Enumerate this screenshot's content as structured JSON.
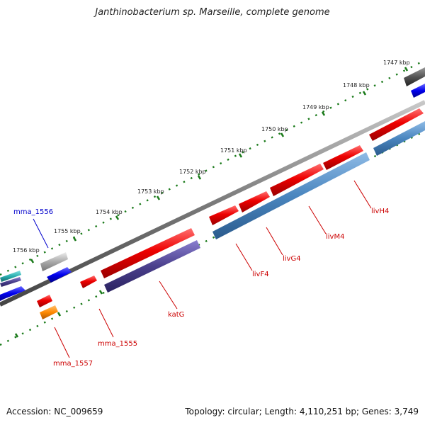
{
  "title": "Janthinobacterium sp. Marseille, complete genome",
  "footer": {
    "accession": "Accession: NC_009659",
    "summary": "Topology: circular; Length: 4,110,251 bp; Genes: 3,749"
  },
  "ticks": [
    "1747 kbp",
    "1748 kbp",
    "1749 kbp",
    "1750 kbp",
    "1751 kbp",
    "1752 kbp",
    "1753 kbp",
    "1754 kbp",
    "1755 kbp",
    "1756 kbp"
  ],
  "genes": [
    {
      "name": "livH4",
      "color": "#cc0000"
    },
    {
      "name": "livM4",
      "color": "#cc0000"
    },
    {
      "name": "livG4",
      "color": "#cc0000"
    },
    {
      "name": "livF4",
      "color": "#cc0000"
    },
    {
      "name": "katG",
      "color": "#cc0000"
    },
    {
      "name": "mma_1555",
      "color": "#cc0000"
    },
    {
      "name": "mma_1556",
      "color": "#0000cc"
    },
    {
      "name": "mma_1557",
      "color": "#cc0000"
    }
  ],
  "colors": {
    "backbone": "#808080",
    "tick_dots": "#1a7a1a",
    "feature_red": "#e60000",
    "feature_steelblue": "#4a86bf",
    "feature_slate": "#4a3f8c",
    "feature_blue": "#0000ee",
    "feature_gray": "#aaaaaa",
    "feature_orange": "#ff8a00",
    "feature_teal": "#2ab0b0"
  }
}
